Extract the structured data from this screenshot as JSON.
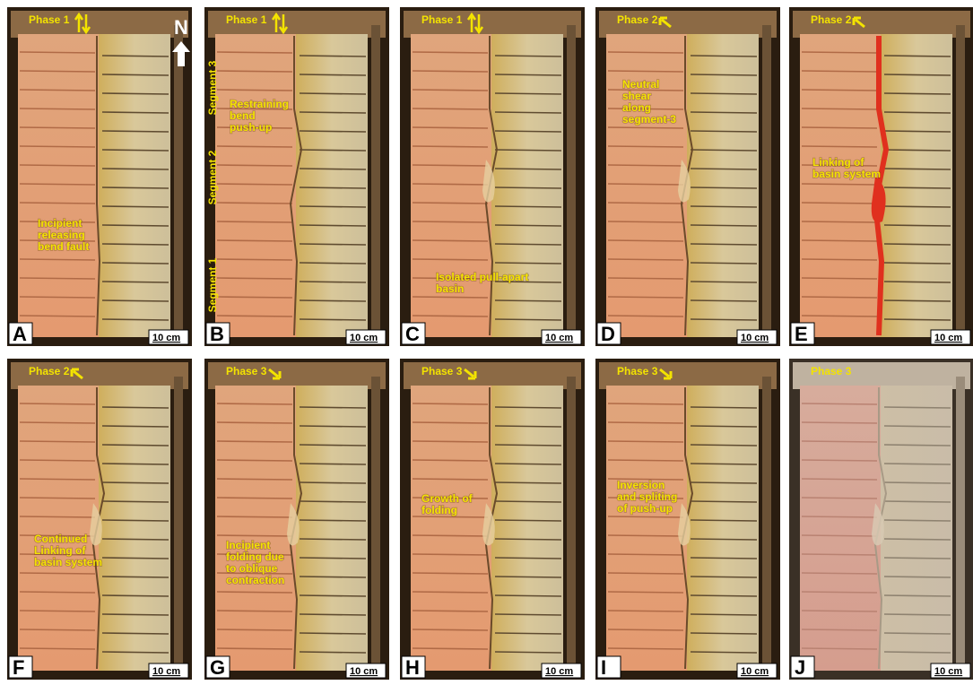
{
  "north": "N",
  "segments": [
    "Segment 3",
    "Segment 2",
    "Segment 1"
  ],
  "panels": [
    {
      "letter": "A",
      "phase": "Phase 1",
      "annotation": [
        "Incipient",
        "releasing",
        "bend fault"
      ],
      "scale": "10 cm"
    },
    {
      "letter": "B",
      "phase": "Phase 1",
      "annotation": [
        "Restraining",
        "bend",
        "push-up"
      ],
      "scale": "10 cm"
    },
    {
      "letter": "C",
      "phase": "Phase 1",
      "annotation": [
        "Isolated pull-apart",
        "basin"
      ],
      "scale": "10 cm"
    },
    {
      "letter": "D",
      "phase": "Phase 2",
      "annotation": [
        "Neutral",
        "shear",
        "along",
        "segment-3"
      ],
      "scale": "10 cm"
    },
    {
      "letter": "E",
      "phase": "Phase 2",
      "annotation": [
        "Linking of",
        "basin system"
      ],
      "scale": "10 cm"
    },
    {
      "letter": "F",
      "phase": "Phase 2",
      "annotation": [
        "Continued",
        "Linking of",
        "basin system"
      ],
      "scale": "10 cm"
    },
    {
      "letter": "G",
      "phase": "Phase 3",
      "annotation": [
        "Incipient",
        "folding due",
        "to oblique",
        "contraction"
      ],
      "scale": "10 cm"
    },
    {
      "letter": "H",
      "phase": "Phase 3",
      "annotation": [
        "Growth of",
        "folding"
      ],
      "scale": "10 cm"
    },
    {
      "letter": "I",
      "phase": "Phase 3",
      "annotation": [
        "Inversion",
        "and spliting",
        "of push-up"
      ],
      "scale": "10 cm"
    },
    {
      "letter": "J",
      "phase": "Phase 3",
      "annotation": [],
      "scale": "10 cm"
    }
  ]
}
